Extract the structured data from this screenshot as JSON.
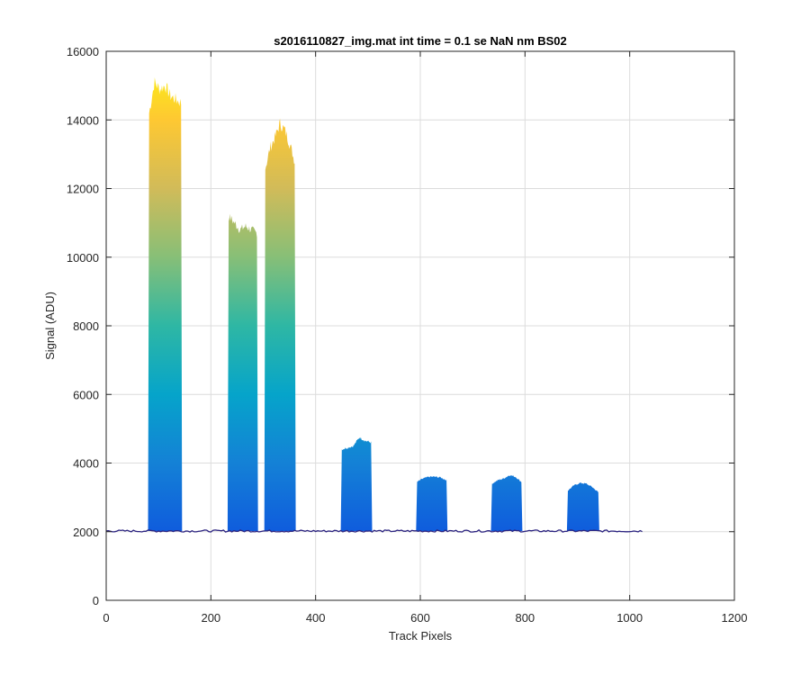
{
  "colors": {
    "background": "#ffffff",
    "axes": "#262626",
    "grid": "#dcdcdc",
    "colormap": [
      "#352a87",
      "#0f5cdd",
      "#1481d6",
      "#06a4ca",
      "#2eb7a4",
      "#87bf77",
      "#d1bb59",
      "#fec832",
      "#f9fb0e"
    ],
    "baseline": "#2b2380"
  },
  "chart_data": {
    "type": "area",
    "title": "s2016110827_img.mat int time = 0.1 se  NaN nm BS02",
    "xlabel": "Track Pixels",
    "ylabel": "Signal (ADU)",
    "xlim": [
      0,
      1200
    ],
    "ylim": [
      0,
      16000
    ],
    "xticks": [
      0,
      200,
      400,
      600,
      800,
      1000,
      1200
    ],
    "yticks": [
      0,
      2000,
      4000,
      6000,
      8000,
      10000,
      12000,
      14000,
      16000
    ],
    "grid": true,
    "colormap": "parula",
    "baseline_level": 2020,
    "x_range_data": [
      0,
      1024
    ],
    "peaks": [
      {
        "x_start": 80,
        "x_end": 145,
        "peak_max": 15200,
        "profile": [
          14200,
          15100,
          14900,
          15000,
          14700,
          14600,
          14500
        ]
      },
      {
        "x_start": 232,
        "x_end": 290,
        "peak_max": 11300,
        "profile": [
          11200,
          11000,
          10800,
          10900,
          10800,
          10700
        ]
      },
      {
        "x_start": 302,
        "x_end": 362,
        "peak_max": 14000,
        "profile": [
          12600,
          13200,
          13500,
          13900,
          13700,
          13300,
          12800
        ]
      },
      {
        "x_start": 448,
        "x_end": 508,
        "peak_max": 4800,
        "profile": [
          4400,
          4450,
          4500,
          4750,
          4650,
          4600
        ]
      },
      {
        "x_start": 592,
        "x_end": 652,
        "peak_max": 3650,
        "profile": [
          3450,
          3550,
          3600,
          3600,
          3580,
          3500
        ]
      },
      {
        "x_start": 735,
        "x_end": 795,
        "peak_max": 3700,
        "profile": [
          3400,
          3500,
          3550,
          3650,
          3600,
          3450
        ]
      },
      {
        "x_start": 880,
        "x_end": 942,
        "peak_max": 3450,
        "profile": [
          3200,
          3350,
          3420,
          3400,
          3300,
          3150
        ]
      }
    ]
  }
}
